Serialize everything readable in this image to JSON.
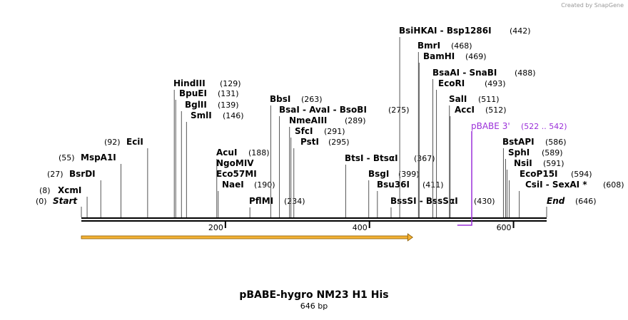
{
  "brand": "Created by SnapGene",
  "map": {
    "title": "pBABE-hygro NM23 H1 His",
    "length_label": "646 bp",
    "length": 646,
    "ticks": [
      200,
      400,
      600
    ],
    "enzymes": [
      {
        "name": "Start",
        "site": {
          "value": 0,
          "label": "(0)"
        }
      },
      {
        "name": "XcmI",
        "site": {
          "value": 8,
          "label": "(8)"
        }
      },
      {
        "name": "BsrDI",
        "site": {
          "value": 27,
          "label": "(27)"
        }
      },
      {
        "name": "MspA1I",
        "site": {
          "value": 55,
          "label": "(55)"
        }
      },
      {
        "name": "EciI",
        "site": {
          "value": 92,
          "label": "(92)"
        }
      },
      {
        "name": "HindIII",
        "site": {
          "value": 129,
          "label": "(129)"
        }
      },
      {
        "name": "BpuEI",
        "site": {
          "value": 131,
          "label": "(131)"
        }
      },
      {
        "name": "BglII",
        "site": {
          "value": 139,
          "label": "(139)"
        }
      },
      {
        "name": "SmlI",
        "site": {
          "value": 146,
          "label": "(146)"
        }
      },
      {
        "name": "AcuI",
        "site": {
          "value": 188,
          "label": "(188)"
        }
      },
      {
        "name": "NgoMIV"
      },
      {
        "name": "Eco57MI"
      },
      {
        "name": "NaeI",
        "site": {
          "value": 190,
          "label": "(190)"
        }
      },
      {
        "name": "PflMI",
        "site": {
          "value": 234,
          "label": "(234)"
        }
      },
      {
        "name": "BbsI",
        "site": {
          "value": 263,
          "label": "(263)"
        }
      },
      {
        "name": "BsaI  - AvaI  - BsoBI",
        "site": {
          "value": 275,
          "label": "(275)"
        }
      },
      {
        "name": "NmeAIII",
        "site": {
          "value": 289,
          "label": "(289)"
        }
      },
      {
        "name": "SfcI",
        "site": {
          "value": 291,
          "label": "(291)"
        }
      },
      {
        "name": "PstI",
        "site": {
          "value": 295,
          "label": "(295)"
        }
      },
      {
        "name": "BtsI  - BtsαI",
        "site": {
          "value": 367,
          "label": "(367)"
        }
      },
      {
        "name": "BsgI",
        "site": {
          "value": 399,
          "label": "(399)"
        }
      },
      {
        "name": "Bsu36I",
        "site": {
          "value": 411,
          "label": "(411)"
        }
      },
      {
        "name": "BssSI  - BssSαI",
        "site": {
          "value": 430,
          "label": "(430)"
        }
      },
      {
        "name": "BsiHKAI  - Bsp1286I",
        "site": {
          "value": 442,
          "label": "(442)"
        }
      },
      {
        "name": "BmrI",
        "site": {
          "value": 468,
          "label": "(468)"
        }
      },
      {
        "name": "BamHI",
        "site": {
          "value": 469,
          "label": "(469)"
        }
      },
      {
        "name": "BsaAI  - SnaBI",
        "site": {
          "value": 488,
          "label": "(488)"
        }
      },
      {
        "name": "EcoRI",
        "site": {
          "value": 493,
          "label": "(493)"
        }
      },
      {
        "name": "SalI",
        "site": {
          "value": 511,
          "label": "(511)"
        }
      },
      {
        "name": "AccI",
        "site": {
          "value": 512,
          "label": "(512)"
        }
      },
      {
        "name": "BstAPI",
        "site": {
          "value": 586,
          "label": "(586)"
        }
      },
      {
        "name": "SphI",
        "site": {
          "value": 589,
          "label": "(589)"
        }
      },
      {
        "name": "NsiI",
        "site": {
          "value": 591,
          "label": "(591)"
        }
      },
      {
        "name": "EcoP15I",
        "site": {
          "value": 594,
          "label": "(594)"
        }
      },
      {
        "name": "CsiI  - SexAI *",
        "site": {
          "value": 608,
          "label": "(608)"
        }
      },
      {
        "name": "End",
        "site": {
          "value": 646,
          "label": "(646)"
        }
      }
    ],
    "feature": {
      "name": "pBABE 3'",
      "range": {
        "start": 522,
        "end": 542,
        "label": "(522 .. 542)"
      }
    },
    "arrow": {
      "start": 0,
      "end": 460
    }
  }
}
